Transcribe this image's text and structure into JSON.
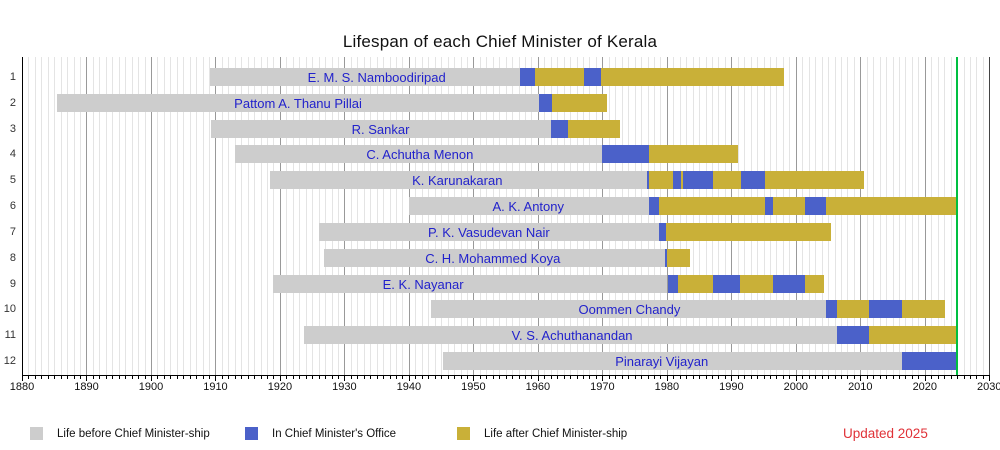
{
  "chart_data": {
    "type": "bar",
    "variant": "horizontal-stacked-lifespan-timeline",
    "title": "Lifespan of each Chief Minister of Kerala",
    "xlabel": "",
    "ylabel": "",
    "xlim": [
      1880,
      2030
    ],
    "x_ticks": [
      1880,
      1890,
      1900,
      1910,
      1920,
      1930,
      1940,
      1950,
      1960,
      1970,
      1980,
      1990,
      2000,
      2010,
      2020,
      2030
    ],
    "grid": "minor yearly lines, major decade lines",
    "legend_position": "bottom",
    "legend": [
      {
        "key": "before",
        "label": "Life before Chief Minister-ship",
        "color": "#cdcdcd"
      },
      {
        "key": "office",
        "label": "In Chief Minister's Office",
        "color": "#4b61c9"
      },
      {
        "key": "after",
        "label": "Life after Chief Minister-ship",
        "color": "#c9b038"
      }
    ],
    "today_line": {
      "year": 2025,
      "color": "#00bf40"
    },
    "updated_note": {
      "text": "Updated 2025",
      "color": "#e03238"
    },
    "rows": [
      {
        "index": 1,
        "name": "E. M. S. Namboodiripad",
        "label_center_year": 1935.0,
        "segments": [
          {
            "type": "before",
            "start": 1909.2,
            "end": 1957.2
          },
          {
            "type": "office",
            "start": 1957.2,
            "end": 1959.6
          },
          {
            "type": "after",
            "start": 1959.6,
            "end": 1967.2
          },
          {
            "type": "office",
            "start": 1967.2,
            "end": 1969.8
          },
          {
            "type": "after",
            "start": 1969.8,
            "end": 1998.2
          }
        ]
      },
      {
        "index": 2,
        "name": "Pattom A. Thanu Pillai",
        "label_center_year": 1922.8,
        "segments": [
          {
            "type": "before",
            "start": 1885.5,
            "end": 1960.1
          },
          {
            "type": "office",
            "start": 1960.1,
            "end": 1962.2
          },
          {
            "type": "after",
            "start": 1962.2,
            "end": 1970.7
          }
        ]
      },
      {
        "index": 3,
        "name": "R. Sankar",
        "label_center_year": 1935.6,
        "segments": [
          {
            "type": "before",
            "start": 1909.3,
            "end": 1962.0
          },
          {
            "type": "office",
            "start": 1962.0,
            "end": 1964.7
          },
          {
            "type": "after",
            "start": 1964.7,
            "end": 1972.8
          }
        ]
      },
      {
        "index": 4,
        "name": "C. Achutha Menon",
        "label_center_year": 1941.7,
        "segments": [
          {
            "type": "before",
            "start": 1913.0,
            "end": 1969.9
          },
          {
            "type": "office",
            "start": 1969.9,
            "end": 1977.2
          },
          {
            "type": "after",
            "start": 1977.2,
            "end": 1991.0
          }
        ]
      },
      {
        "index": 5,
        "name": "K. Karunakaran",
        "label_center_year": 1947.5,
        "segments": [
          {
            "type": "before",
            "start": 1918.5,
            "end": 1976.95
          },
          {
            "type": "office",
            "start": 1976.95,
            "end": 1977.25
          },
          {
            "type": "after",
            "start": 1977.25,
            "end": 1980.9
          },
          {
            "type": "office",
            "start": 1980.9,
            "end": 1982.2
          },
          {
            "type": "after",
            "start": 1982.2,
            "end": 1982.5
          },
          {
            "type": "office",
            "start": 1982.5,
            "end": 1987.15
          },
          {
            "type": "after",
            "start": 1987.15,
            "end": 1991.5
          },
          {
            "type": "office",
            "start": 1991.5,
            "end": 1995.2
          },
          {
            "type": "after",
            "start": 1995.2,
            "end": 2010.6
          }
        ]
      },
      {
        "index": 6,
        "name": "A. K. Antony",
        "label_center_year": 1958.5,
        "segments": [
          {
            "type": "before",
            "start": 1940.0,
            "end": 1977.3
          },
          {
            "type": "office",
            "start": 1977.3,
            "end": 1978.8
          },
          {
            "type": "after",
            "start": 1978.8,
            "end": 1995.2
          },
          {
            "type": "office",
            "start": 1995.2,
            "end": 1996.4
          },
          {
            "type": "after",
            "start": 1996.4,
            "end": 2001.4
          },
          {
            "type": "office",
            "start": 2001.4,
            "end": 2004.7
          },
          {
            "type": "after",
            "start": 2004.7,
            "end": 2025.0
          }
        ]
      },
      {
        "index": 7,
        "name": "P. K. Vasudevan Nair",
        "label_center_year": 1952.4,
        "segments": [
          {
            "type": "before",
            "start": 1926.1,
            "end": 1978.8
          },
          {
            "type": "office",
            "start": 1978.8,
            "end": 1979.8
          },
          {
            "type": "after",
            "start": 1979.8,
            "end": 2005.4
          }
        ]
      },
      {
        "index": 8,
        "name": "C. H. Mohammed Koya",
        "label_center_year": 1953.0,
        "segments": [
          {
            "type": "before",
            "start": 1926.8,
            "end": 1979.75
          },
          {
            "type": "office",
            "start": 1979.75,
            "end": 1979.95
          },
          {
            "type": "after",
            "start": 1979.95,
            "end": 1983.6
          }
        ]
      },
      {
        "index": 9,
        "name": "E. K. Nayanar",
        "label_center_year": 1942.2,
        "segments": [
          {
            "type": "before",
            "start": 1919.0,
            "end": 1980.1
          },
          {
            "type": "office",
            "start": 1980.1,
            "end": 1981.8
          },
          {
            "type": "after",
            "start": 1981.8,
            "end": 1987.2
          },
          {
            "type": "office",
            "start": 1987.2,
            "end": 1991.4
          },
          {
            "type": "after",
            "start": 1991.4,
            "end": 1996.4
          },
          {
            "type": "office",
            "start": 1996.4,
            "end": 2001.4
          },
          {
            "type": "after",
            "start": 2001.4,
            "end": 2004.4
          }
        ]
      },
      {
        "index": 10,
        "name": "Oommen Chandy",
        "label_center_year": 1974.2,
        "segments": [
          {
            "type": "before",
            "start": 1943.4,
            "end": 2004.7
          },
          {
            "type": "office",
            "start": 2004.7,
            "end": 2006.4
          },
          {
            "type": "after",
            "start": 2006.4,
            "end": 2011.4
          },
          {
            "type": "office",
            "start": 2011.4,
            "end": 2016.4
          },
          {
            "type": "after",
            "start": 2016.4,
            "end": 2023.2
          }
        ]
      },
      {
        "index": 11,
        "name": "V. S. Achuthanandan",
        "label_center_year": 1965.3,
        "segments": [
          {
            "type": "before",
            "start": 1923.8,
            "end": 2006.4
          },
          {
            "type": "office",
            "start": 2006.4,
            "end": 2011.3
          },
          {
            "type": "after",
            "start": 2011.3,
            "end": 2025.0
          }
        ]
      },
      {
        "index": 12,
        "name": "Pinarayi Vijayan",
        "label_center_year": 1979.2,
        "segments": [
          {
            "type": "before",
            "start": 1945.3,
            "end": 2016.4
          },
          {
            "type": "office",
            "start": 2016.4,
            "end": 2025.0
          }
        ]
      }
    ]
  },
  "colors": {
    "background": "#ffffff",
    "name_text": "#2222cc",
    "axis": "#000000",
    "right_border": "#444444",
    "minor_grid": "#e4e4e4",
    "major_grid": "#999999",
    "tick_label": "#111111",
    "row_number": "#333333",
    "legend_text": "#111111",
    "title_text": "#111111"
  }
}
